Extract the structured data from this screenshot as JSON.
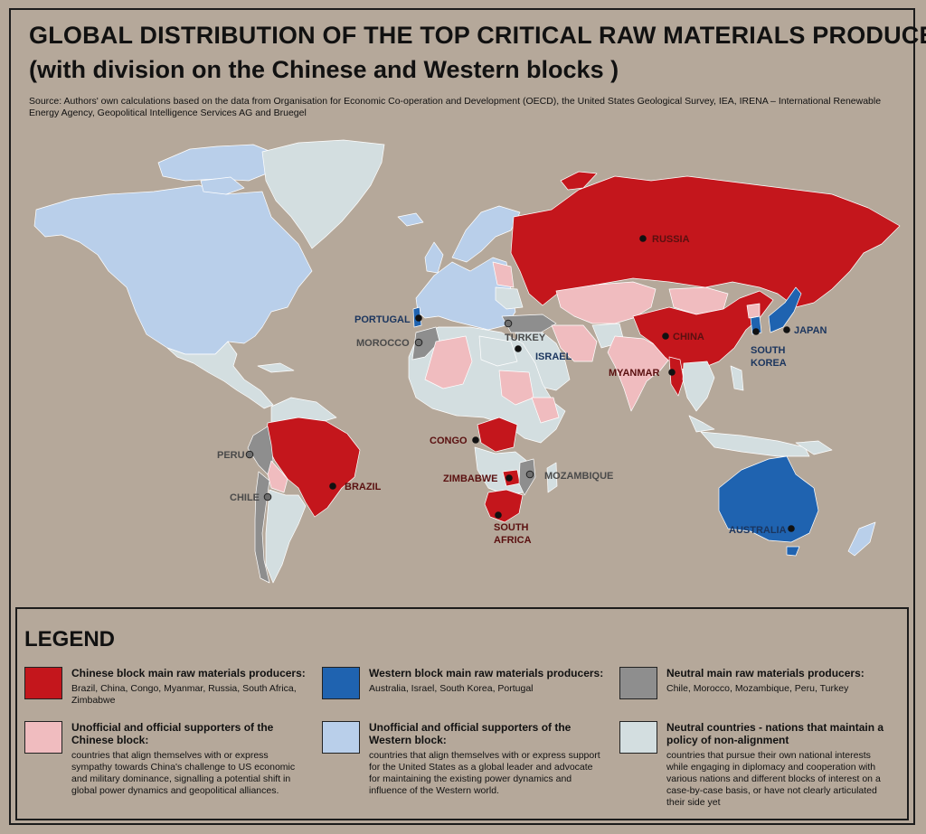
{
  "title_line1": "GLOBAL DISTRIBUTION OF THE TOP CRITICAL RAW MATERIALS PRODUCERS",
  "title_line2": "(with division on the Chinese and Western blocks )",
  "source": "Source: Authors' own calculations based on the data from Organisation for Economic Co-operation and Development (OECD), the United States Geological Survey, IEA, IRENA – International Renewable Energy Agency, Geopolitical Intelligence Services AG and Bruegel",
  "colors": {
    "background": "#b5a89a",
    "chinese_main": "#c4161c",
    "chinese_support": "#f0bcbf",
    "western_main": "#1f63b0",
    "western_support": "#b9cfea",
    "neutral_main": "#8e8e8e",
    "neutral_countries": "#d3dee0"
  },
  "map_labels": {
    "russia": "RUSSIA",
    "china": "CHINA",
    "japan": "JAPAN",
    "south_korea_1": "SOUTH",
    "south_korea_2": "KOREA",
    "myanmar": "MYANMAR",
    "portugal": "PORTUGAL",
    "morocco": "MOROCCO",
    "turkey": "TURKEY",
    "israel": "ISRAEL",
    "congo": "CONGO",
    "zimbabwe": "ZIMBABWE",
    "mozambique": "MOZAMBIQUE",
    "south_africa_1": "SOUTH",
    "south_africa_2": "AFRICA",
    "peru": "PERU",
    "chile": "CHILE",
    "brazil": "BRAZIL",
    "australia": "AUSTRALIA"
  },
  "legend": {
    "title": "LEGEND",
    "items": [
      {
        "heading": "Chinese block main raw materials producers:",
        "desc": "Brazil, China, Congo, Myanmar, Russia, South Africa, Zimbabwe",
        "color": "#c4161c"
      },
      {
        "heading": "Western block main raw materials producers:",
        "desc": "Australia, Israel, South Korea, Portugal",
        "color": "#1f63b0"
      },
      {
        "heading": "Neutral main raw materials producers:",
        "desc": "Chile, Morocco, Mozambique, Peru, Turkey",
        "color": "#8e8e8e"
      },
      {
        "heading": "Unofficial and official supporters of the Chinese block:",
        "desc": "countries that align themselves with or express sympathy towards China's challenge to US economic and military dominance, signalling a potential shift in global power dynamics and geopolitical alliances.",
        "color": "#f0bcbf"
      },
      {
        "heading": "Unofficial and official supporters of the Western block:",
        "desc": "countries that align themselves with or express support for the United States as a global leader and advocate for maintaining the existing power dynamics and influence of the Western world.",
        "color": "#b9cfea"
      },
      {
        "heading": "Neutral countries - nations that maintain a policy of non-alignment",
        "desc": "countries that pursue their own national interests while engaging in diplomacy and cooperation with various nations and different blocks of interest on a case-by-case basis, or have not clearly articulated their side yet",
        "color": "#d3dee0"
      }
    ]
  }
}
